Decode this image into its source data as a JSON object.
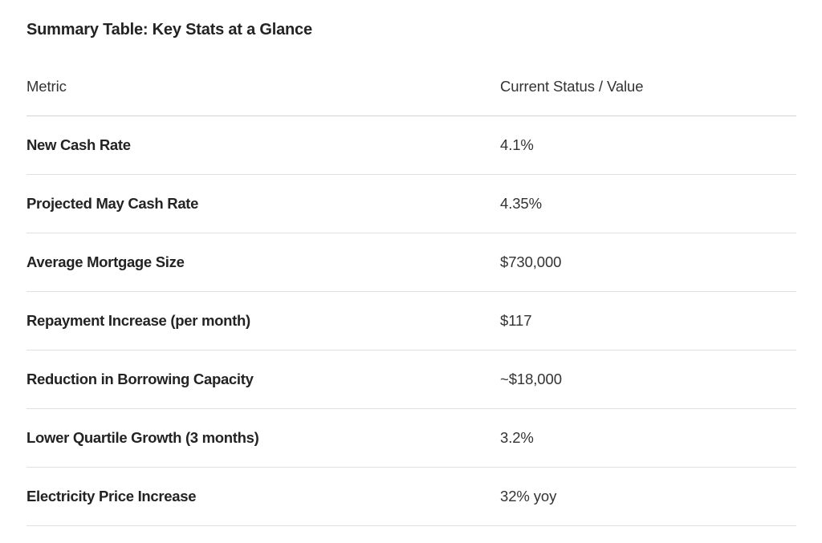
{
  "title": "Summary Table: Key Stats at a Glance",
  "table": {
    "columns": [
      "Metric",
      "Current Status / Value"
    ],
    "rows": [
      {
        "metric": "New Cash Rate",
        "value": "4.1%"
      },
      {
        "metric": "Projected May Cash Rate",
        "value": "4.35%"
      },
      {
        "metric": "Average Mortgage Size",
        "value": "$730,000"
      },
      {
        "metric": "Repayment Increase (per month)",
        "value": "$117"
      },
      {
        "metric": "Reduction in Borrowing Capacity",
        "value": "~$18,000"
      },
      {
        "metric": "Lower Quartile Growth (3 months)",
        "value": "3.2%"
      },
      {
        "metric": "Electricity Price Increase",
        "value": "32% yoy"
      }
    ]
  },
  "colors": {
    "background": "#ffffff",
    "text_bold": "#232323",
    "text_regular": "#333333",
    "header_rule": "#d2d2d2",
    "row_rule": "#e0e0e0"
  }
}
